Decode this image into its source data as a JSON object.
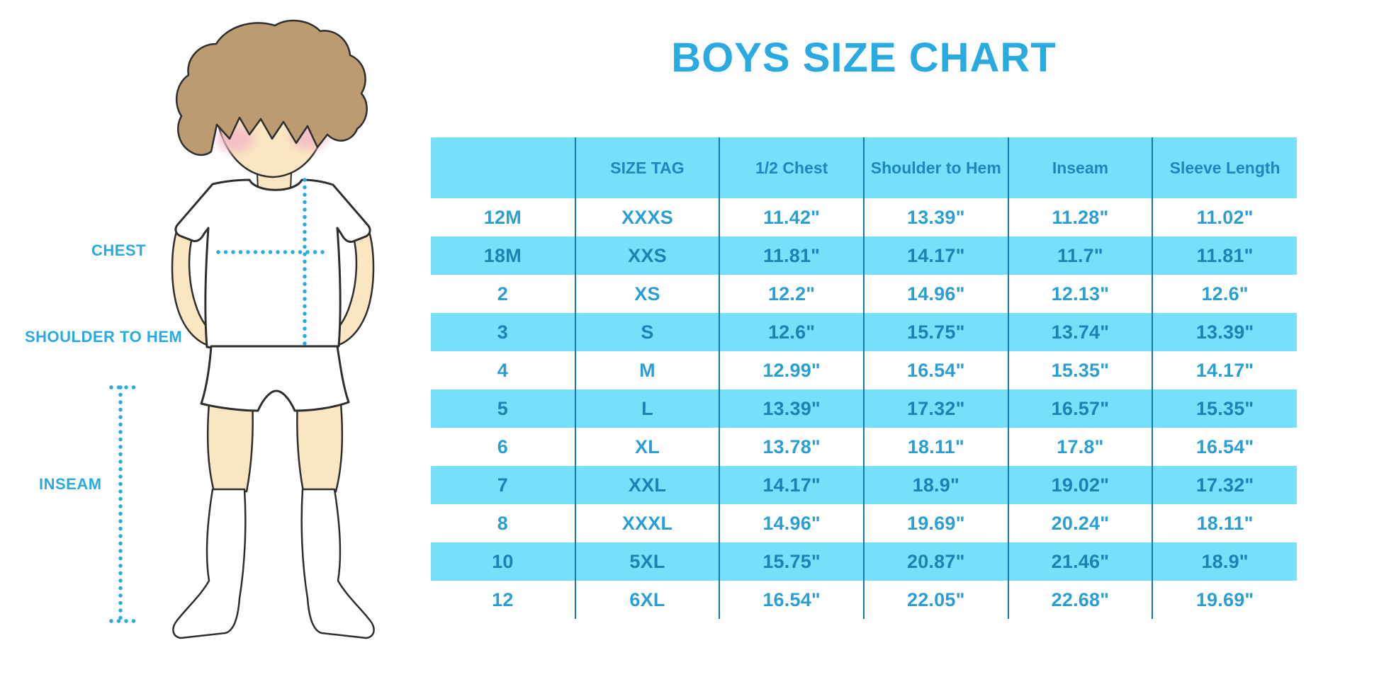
{
  "title": "BOYS SIZE CHART",
  "diagram": {
    "chest_label": "CHEST",
    "shoulder_to_hem_label": "SHOULDER TO HEM",
    "inseam_label": "INSEAM"
  },
  "chart_data": {
    "type": "table",
    "title": "BOYS SIZE CHART",
    "columns": [
      "",
      "SIZE TAG",
      "1/2 Chest",
      "Shoulder to Hem",
      "Inseam",
      "Sleeve Length"
    ],
    "rows": [
      [
        "12M",
        "XXXS",
        "11.42\"",
        "13.39\"",
        "11.28\"",
        "11.02\""
      ],
      [
        "18M",
        "XXS",
        "11.81\"",
        "14.17\"",
        "11.7\"",
        "11.81\""
      ],
      [
        "2",
        "XS",
        "12.2\"",
        "14.96\"",
        "12.13\"",
        "12.6\""
      ],
      [
        "3",
        "S",
        "12.6\"",
        "15.75\"",
        "13.74\"",
        "13.39\""
      ],
      [
        "4",
        "M",
        "12.99\"",
        "16.54\"",
        "15.35\"",
        "14.17\""
      ],
      [
        "5",
        "L",
        "13.39\"",
        "17.32\"",
        "16.57\"",
        "15.35\""
      ],
      [
        "6",
        "XL",
        "13.78\"",
        "18.11\"",
        "17.8\"",
        "16.54\""
      ],
      [
        "7",
        "XXL",
        "14.17\"",
        "18.9\"",
        "19.02\"",
        "17.32\""
      ],
      [
        "8",
        "XXXL",
        "14.96\"",
        "19.69\"",
        "20.24\"",
        "18.11\""
      ],
      [
        "10",
        "5XL",
        "15.75\"",
        "20.87\"",
        "21.46\"",
        "18.9\""
      ],
      [
        "12",
        "6XL",
        "16.54\"",
        "22.05\"",
        "22.68\"",
        "19.69\""
      ]
    ],
    "row_stripe_pattern": [
      "white",
      "cyan",
      "white",
      "cyan",
      "white",
      "cyan",
      "white",
      "cyan",
      "white",
      "cyan",
      "white"
    ]
  },
  "colors": {
    "accent": "#29ABE2",
    "band": "#76E0FA",
    "divider": "#1778AC",
    "header_text": "#1E86BC",
    "text_white_row": "#2B9FD4",
    "text_cyan_row": "#1B82B4",
    "skin": "#FAE6C2",
    "hair": "#BC9B72",
    "blush": "#F3B9C6",
    "outline": "#2e2e2e"
  }
}
